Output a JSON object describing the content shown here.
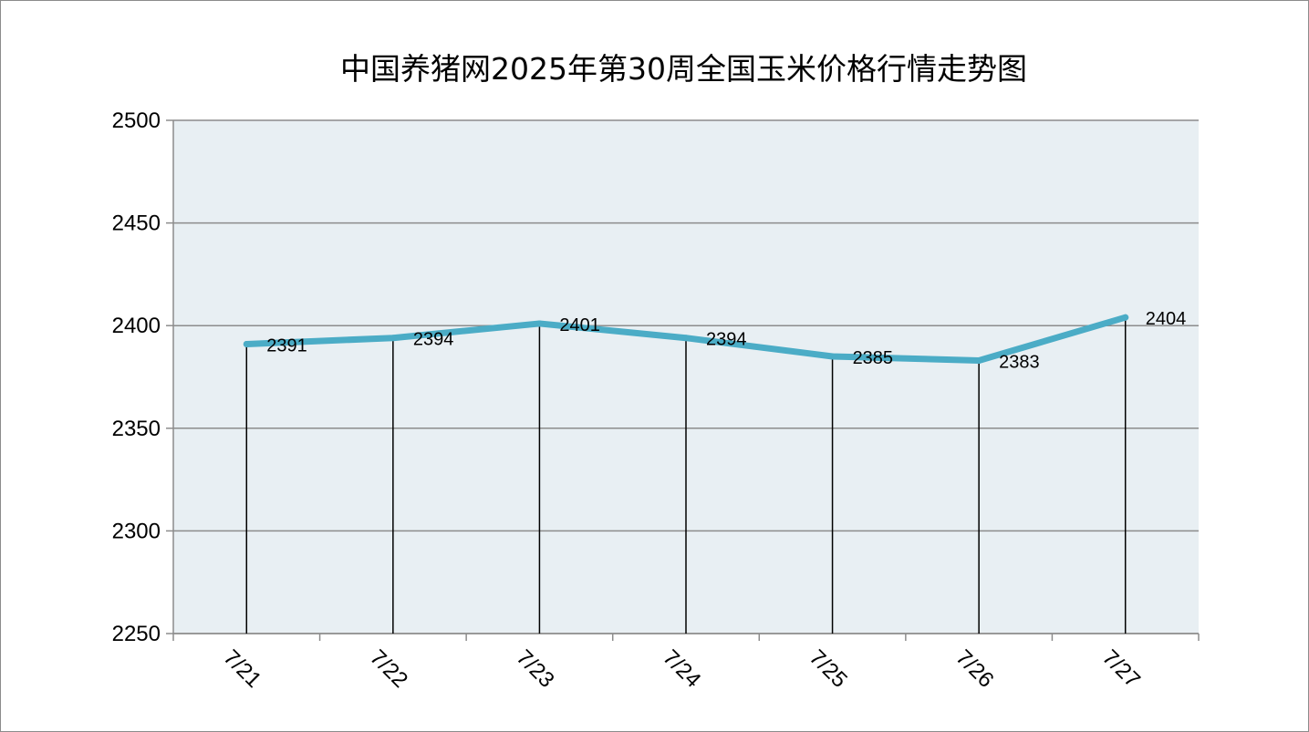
{
  "chart_data": {
    "type": "line",
    "title": "中国养猪网2025年第30周全国玉米价格行情走势图",
    "categories": [
      "7/21",
      "7/22",
      "7/23",
      "7/24",
      "7/25",
      "7/26",
      "7/27"
    ],
    "series": [
      {
        "values": [
          2391,
          2394,
          2401,
          2394,
          2385,
          2383,
          2404
        ]
      }
    ],
    "ylim": [
      2250,
      2500
    ],
    "yticks": [
      2250,
      2300,
      2350,
      2400,
      2450,
      2500
    ],
    "data_labels": true,
    "drop_lines": true,
    "grid": true,
    "legend": "none",
    "colors": {
      "line": "#4bacc6",
      "plot_bg": "#e8eff3",
      "grid": "#8c8c8c",
      "drop_line": "#000000"
    }
  }
}
